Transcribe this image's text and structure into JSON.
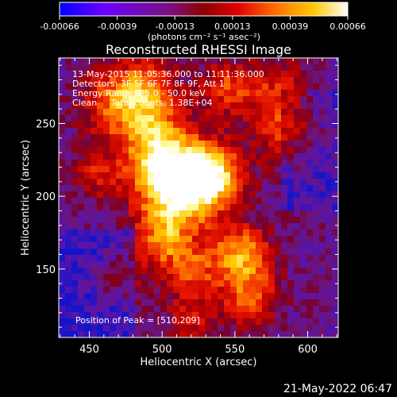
{
  "chart_data": {
    "type": "heatmap",
    "title": "Reconstructed RHESSI Image",
    "xlabel": "Heliocentric X (arcsec)",
    "ylabel": "Heliocentric Y (arcsec)",
    "xlim": [
      429,
      621
    ],
    "ylim": [
      103,
      295
    ],
    "x_ticks": [
      450,
      500,
      550,
      600
    ],
    "y_ticks": [
      150,
      200,
      250
    ],
    "peak": [
      510,
      209
    ],
    "colorbar": {
      "range": [
        -0.00066,
        0.00066
      ],
      "tick_labels": [
        "-0.00066",
        "-0.00039",
        "-0.00013",
        "0.00013",
        "0.00039",
        "0.00066"
      ],
      "unit_label": "(photons cm⁻² s⁻¹ asec⁻²)",
      "colors": [
        "#0000ff",
        "#7a00ff",
        "#7a0a8a",
        "#a00000",
        "#e00000",
        "#ff8000",
        "#ffd000",
        "#ffffff"
      ]
    },
    "annotations": [
      "13-May-2015 11:05:36.000 to 11:11:36.000",
      "Detectors: 3F 5F 6F 7F 8F 9F, Att 1",
      "Energy Range: 25.0 - 50.0 keV",
      "Clean     Total counts: 1.38E+04"
    ],
    "peak_label": "Position of Peak = [510,209]"
  },
  "footer": {
    "date": "21-May-2022 06:47"
  }
}
